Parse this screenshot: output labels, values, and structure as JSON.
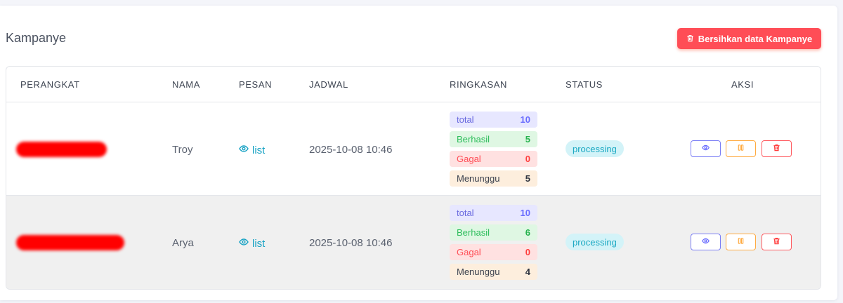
{
  "header": {
    "title": "Kampanye",
    "clear_button_label": "Bersihkan data Kampanye"
  },
  "table": {
    "columns": [
      "PERANGKAT",
      "NAMA",
      "PESAN",
      "JADWAL",
      "RINGKASAN",
      "STATUS",
      "AKSI"
    ],
    "rows": [
      {
        "nama": "Troy",
        "pesan": "list",
        "jadwal": "2025-10-08 10:46",
        "summary": {
          "total_label": "total",
          "total": "10",
          "ok_label": "Berhasil",
          "ok": "5",
          "fail_label": "Gagal",
          "fail": "0",
          "wait_label": "Menunggu",
          "wait": "5"
        },
        "status": "processing"
      },
      {
        "nama": "Arya",
        "pesan": "list",
        "jadwal": "2025-10-08 10:46",
        "summary": {
          "total_label": "total",
          "total": "10",
          "ok_label": "Berhasil",
          "ok": "6",
          "fail_label": "Gagal",
          "fail": "0",
          "wait_label": "Menunggu",
          "wait": "4"
        },
        "status": "processing"
      }
    ]
  },
  "icons": {
    "clear": "trash-icon",
    "pesan": "eye-icon",
    "view": "eye-icon",
    "pause": "pause-icon",
    "delete": "trash-icon"
  },
  "colors": {
    "danger": "#ff4d56",
    "primary": "#696cff",
    "success": "#28b34f",
    "warning": "#ffab41",
    "info": "#1aa8c2",
    "redaction": "#ff0000"
  }
}
